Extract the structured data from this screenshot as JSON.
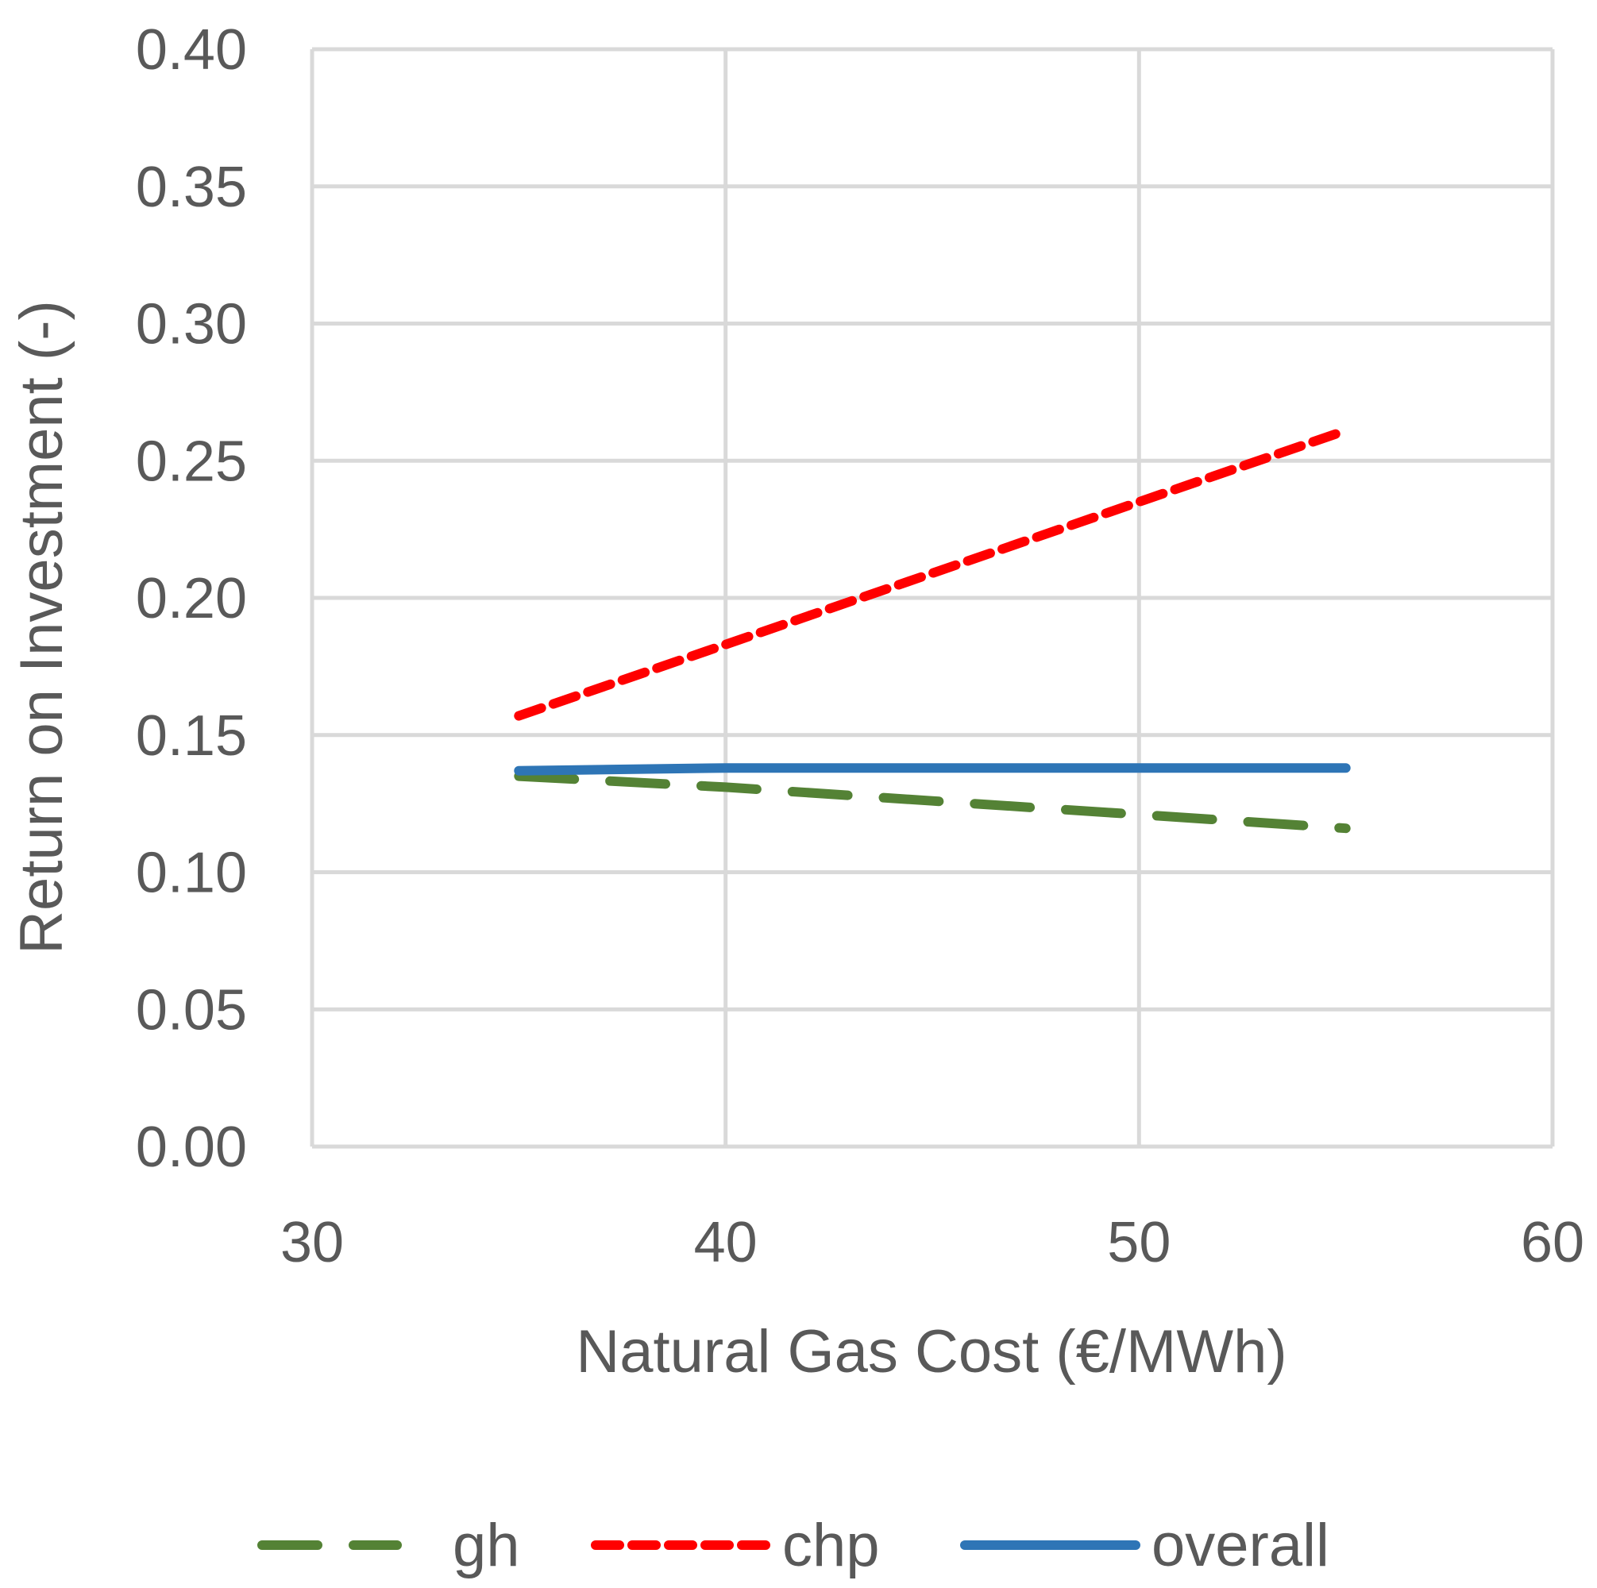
{
  "chart_data": {
    "type": "line",
    "title": "",
    "xlabel": "Natural Gas Cost (€/MWh)",
    "ylabel": "Return on Investment (-)",
    "xlim": [
      30,
      60
    ],
    "ylim": [
      0,
      0.4
    ],
    "x_ticks": [
      "30",
      "40",
      "50",
      "60"
    ],
    "y_ticks": [
      "0.00",
      "0.05",
      "0.10",
      "0.15",
      "0.20",
      "0.25",
      "0.30",
      "0.35",
      "0.40"
    ],
    "grid": true,
    "legend_position": "bottom",
    "series": [
      {
        "name": "gh",
        "color": "#548235",
        "style": "long-dash",
        "x": [
          35,
          40,
          45,
          50,
          55
        ],
        "y": [
          0.135,
          0.131,
          0.126,
          0.121,
          0.116
        ]
      },
      {
        "name": "chp",
        "color": "#ff0000",
        "style": "short-dash",
        "x": [
          35,
          40,
          45,
          50,
          55
        ],
        "y": [
          0.157,
          0.183,
          0.209,
          0.235,
          0.261
        ]
      },
      {
        "name": "overall",
        "color": "#2e75b6",
        "style": "solid",
        "x": [
          35,
          40,
          45,
          50,
          55
        ],
        "y": [
          0.137,
          0.138,
          0.138,
          0.138,
          0.138
        ]
      }
    ]
  }
}
